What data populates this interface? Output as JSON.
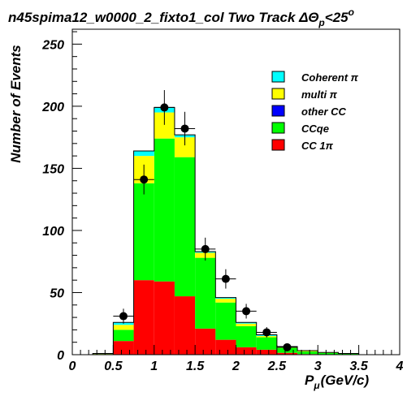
{
  "chart_data": {
    "type": "bar",
    "title": {
      "main": "n45spima12_w0000_2_fixto1_col Two Track ΔΘ",
      "sub": "p",
      "tail": "<25",
      "sup": "o"
    },
    "xlabel": {
      "main": "P",
      "sub": "μ",
      "tail": "(GeV/c)"
    },
    "ylabel": "Number of Events",
    "xlim": [
      0,
      4
    ],
    "ylim": [
      0,
      262
    ],
    "xticks": [
      "0",
      "0.5",
      "1",
      "1.5",
      "2",
      "2.5",
      "3",
      "3.5",
      "4"
    ],
    "yticks": [
      "0",
      "50",
      "100",
      "150",
      "200",
      "250"
    ],
    "bin_edges": [
      0.0,
      0.25,
      0.5,
      0.75,
      1.0,
      1.25,
      1.5,
      1.75,
      2.0,
      2.25,
      2.5,
      2.75,
      3.0,
      3.25,
      3.5,
      3.75,
      4.0
    ],
    "series": [
      {
        "name": "CC 1π",
        "color": "#ff0000",
        "values": [
          0,
          0.5,
          11,
          60,
          59,
          47,
          21,
          12,
          6,
          4,
          1.5,
          0.5,
          0.3,
          0,
          0,
          0
        ]
      },
      {
        "name": "CCqe",
        "color": "#00ff00",
        "values": [
          0,
          0.5,
          9,
          78,
          115,
          112,
          57,
          30,
          17,
          10,
          4,
          2,
          1.2,
          1,
          0,
          0
        ]
      },
      {
        "name": "other CC",
        "color": "#0000ff",
        "values": [
          0,
          0,
          0,
          0,
          0,
          0,
          0,
          0,
          0,
          0,
          0,
          0,
          0,
          0,
          0,
          0
        ]
      },
      {
        "name": "multi π",
        "color": "#ffff00",
        "values": [
          0,
          0,
          4,
          22,
          21,
          16,
          4,
          3,
          2,
          1,
          0.5,
          0.5,
          0.3,
          0,
          0,
          0
        ]
      },
      {
        "name": "Coherent π",
        "color": "#00ffff",
        "values": [
          0,
          0,
          2,
          4,
          4,
          2,
          1,
          1,
          1,
          1,
          0.5,
          0.3,
          0,
          0,
          0,
          0
        ]
      }
    ],
    "data_points": {
      "x": [
        0.625,
        0.875,
        1.125,
        1.375,
        1.625,
        1.875,
        2.125,
        2.375,
        2.625
      ],
      "y": [
        31,
        141,
        199,
        182,
        85,
        61,
        35,
        18,
        6
      ],
      "err": [
        6,
        12,
        14,
        13.5,
        9.2,
        7.8,
        5.9,
        4.2,
        2.4
      ]
    },
    "legend": {
      "position": "top-right",
      "entries": [
        "Coherent π",
        "multi π",
        "other CC",
        "CCqe",
        "CC 1π"
      ]
    }
  }
}
